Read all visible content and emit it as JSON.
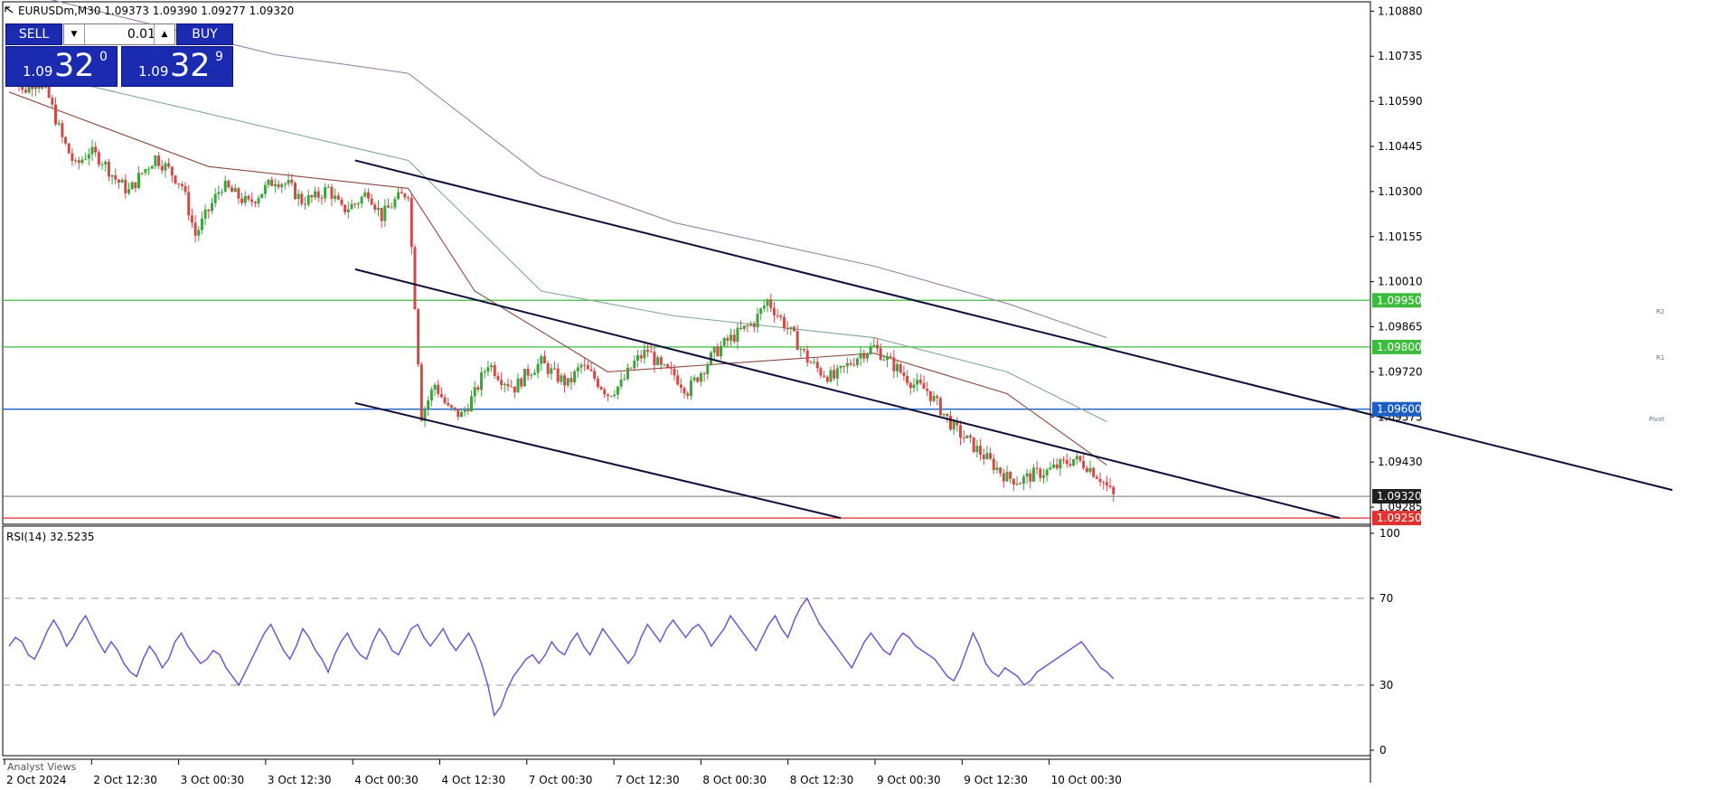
{
  "header": {
    "symbol_line": "EURUSDm,M30  1.09373 1.09390 1.09277 1.09320"
  },
  "trade_panel": {
    "sell_label": "SELL",
    "buy_label": "BUY",
    "lot": "0.01",
    "sell_price_prefix": "1.09",
    "sell_price_big": "32",
    "sell_price_sup": "0",
    "buy_price_prefix": "1.09",
    "buy_price_big": "32",
    "buy_price_sup": "9",
    "color": "#1b2bb0"
  },
  "price_axis": {
    "labels": [
      "1.10880",
      "1.10735",
      "1.10590",
      "1.10445",
      "1.10300",
      "1.10155",
      "1.10010",
      "1.09865",
      "1.09720",
      "1.09575",
      "1.09430",
      "1.09285"
    ],
    "range": [
      1.0923,
      1.1091
    ]
  },
  "price_tags": [
    {
      "label": "1.09950",
      "price": 1.0995,
      "color": "#3dbb3d"
    },
    {
      "label": "1.09800",
      "price": 1.098,
      "color": "#3dbb3d"
    },
    {
      "label": "1.09600",
      "price": 1.096,
      "color": "#1b5fc4"
    },
    {
      "label": "1.09320",
      "price": 1.0932,
      "color": "#202020"
    },
    {
      "label": "1.09250",
      "price": 1.0925,
      "color": "#e03030"
    }
  ],
  "level_labels": {
    "r2": "R2",
    "r1": "R1",
    "pivot": "Pivot"
  },
  "time_axis": [
    "2 Oct 2024",
    "2 Oct 12:30",
    "3 Oct 00:30",
    "3 Oct 12:30",
    "4 Oct 00:30",
    "4 Oct 12:30",
    "7 Oct 00:30",
    "7 Oct 12:30",
    "8 Oct 00:30",
    "8 Oct 12:30",
    "9 Oct 00:30",
    "9 Oct 12:30",
    "10 Oct 00:30"
  ],
  "rsi": {
    "title": "RSI(14) 32.5235",
    "axis_labels": [
      "100",
      "70",
      "30",
      "0"
    ],
    "levels": [
      70,
      30
    ],
    "values": [
      48,
      52,
      50,
      44,
      42,
      48,
      55,
      60,
      55,
      48,
      52,
      58,
      62,
      56,
      50,
      45,
      50,
      46,
      40,
      36,
      34,
      42,
      48,
      44,
      38,
      42,
      50,
      54,
      48,
      44,
      40,
      42,
      46,
      44,
      38,
      34,
      30,
      36,
      42,
      48,
      54,
      58,
      52,
      46,
      42,
      48,
      56,
      52,
      46,
      42,
      36,
      44,
      50,
      54,
      48,
      44,
      42,
      50,
      56,
      52,
      46,
      44,
      50,
      56,
      58,
      52,
      48,
      52,
      56,
      50,
      46,
      50,
      54,
      48,
      40,
      30,
      16,
      20,
      28,
      34,
      38,
      42,
      44,
      40,
      44,
      50,
      46,
      44,
      50,
      54,
      48,
      44,
      50,
      56,
      52,
      48,
      44,
      40,
      44,
      52,
      58,
      54,
      50,
      56,
      60,
      56,
      52,
      56,
      58,
      54,
      48,
      52,
      56,
      62,
      58,
      54,
      50,
      46,
      52,
      58,
      62,
      56,
      52,
      60,
      66,
      70,
      64,
      58,
      54,
      50,
      46,
      42,
      38,
      44,
      50,
      54,
      50,
      46,
      44,
      50,
      54,
      52,
      48,
      46,
      44,
      42,
      38,
      34,
      32,
      38,
      46,
      54,
      48,
      40,
      36,
      34,
      38,
      36,
      34,
      30,
      32,
      36,
      38,
      40,
      42,
      44,
      46,
      48,
      50,
      46,
      42,
      38,
      36,
      33
    ]
  },
  "chart_data": {
    "type": "candlestick",
    "symbol": "EURUSDm",
    "timeframe": "M30",
    "ohlc": {
      "open": 1.09373,
      "high": 1.0939,
      "low": 1.09277,
      "close": 1.0932
    },
    "current_price": 1.0932,
    "horizontal_levels": [
      {
        "name": "R2",
        "price": 1.0995
      },
      {
        "name": "R1",
        "price": 1.098
      },
      {
        "name": "Pivot",
        "price": 1.096
      },
      {
        "name": "",
        "price": 1.0925
      }
    ],
    "close_path": [
      [
        0,
        1.1072
      ],
      [
        2,
        1.1062
      ],
      [
        4,
        1.1066
      ],
      [
        6,
        1.106
      ],
      [
        8,
        1.1047
      ],
      [
        10,
        1.1038
      ],
      [
        12,
        1.1043
      ],
      [
        14,
        1.104
      ],
      [
        16,
        1.1034
      ],
      [
        18,
        1.103
      ],
      [
        20,
        1.1036
      ],
      [
        22,
        1.1041
      ],
      [
        24,
        1.1037
      ],
      [
        26,
        1.1032
      ],
      [
        28,
        1.1016
      ],
      [
        30,
        1.1024
      ],
      [
        32,
        1.1032
      ],
      [
        34,
        1.1029
      ],
      [
        36,
        1.1026
      ],
      [
        38,
        1.103
      ],
      [
        40,
        1.1034
      ],
      [
        42,
        1.1032
      ],
      [
        44,
        1.1027
      ],
      [
        46,
        1.1028
      ],
      [
        48,
        1.1031
      ],
      [
        50,
        1.1024
      ],
      [
        52,
        1.1026
      ],
      [
        54,
        1.103
      ],
      [
        56,
        1.1022
      ],
      [
        58,
        1.1027
      ],
      [
        60,
        1.103
      ],
      [
        62,
        1.0958
      ],
      [
        64,
        1.0968
      ],
      [
        66,
        1.096
      ],
      [
        68,
        1.0958
      ],
      [
        70,
        1.0965
      ],
      [
        72,
        1.0975
      ],
      [
        74,
        1.097
      ],
      [
        76,
        1.0967
      ],
      [
        78,
        1.0972
      ],
      [
        80,
        1.0975
      ],
      [
        82,
        1.0971
      ],
      [
        84,
        1.0968
      ],
      [
        86,
        1.0974
      ],
      [
        88,
        1.097
      ],
      [
        90,
        1.0965
      ],
      [
        92,
        1.0968
      ],
      [
        94,
        1.0975
      ],
      [
        96,
        1.0979
      ],
      [
        98,
        1.0973
      ],
      [
        100,
        1.0971
      ],
      [
        102,
        1.0966
      ],
      [
        104,
        1.0972
      ],
      [
        106,
        1.0978
      ],
      [
        108,
        1.0982
      ],
      [
        110,
        1.0985
      ],
      [
        112,
        1.0988
      ],
      [
        114,
        1.0995
      ],
      [
        116,
        1.0989
      ],
      [
        118,
        1.0983
      ],
      [
        120,
        1.0976
      ],
      [
        122,
        1.0972
      ],
      [
        124,
        1.097
      ],
      [
        126,
        1.0974
      ],
      [
        128,
        1.0978
      ],
      [
        130,
        1.098
      ],
      [
        132,
        1.0976
      ],
      [
        134,
        1.0972
      ],
      [
        136,
        1.0968
      ],
      [
        138,
        1.0966
      ],
      [
        140,
        1.096
      ],
      [
        142,
        1.0954
      ],
      [
        144,
        1.095
      ],
      [
        146,
        1.0946
      ],
      [
        148,
        1.0942
      ],
      [
        150,
        1.0938
      ],
      [
        152,
        1.0937
      ],
      [
        154,
        1.0939
      ],
      [
        156,
        1.094
      ],
      [
        158,
        1.0942
      ],
      [
        160,
        1.0944
      ],
      [
        162,
        1.0942
      ],
      [
        164,
        1.0938
      ],
      [
        166,
        1.0932
      ]
    ],
    "moving_averages": [
      {
        "color": "#9b7fa8",
        "points": [
          [
            0,
            1.1095
          ],
          [
            40,
            1.1074
          ],
          [
            60,
            1.1068
          ],
          [
            80,
            1.1035
          ],
          [
            100,
            1.102
          ],
          [
            130,
            1.1006
          ],
          [
            150,
            1.0994
          ],
          [
            165,
            1.0983
          ]
        ]
      },
      {
        "color": "#7fa89a",
        "points": [
          [
            0,
            1.107
          ],
          [
            40,
            1.105
          ],
          [
            60,
            1.104
          ],
          [
            80,
            1.0998
          ],
          [
            100,
            1.099
          ],
          [
            130,
            1.0983
          ],
          [
            150,
            1.0972
          ],
          [
            165,
            1.0956
          ]
        ]
      },
      {
        "color": "#8a4b3d",
        "points": [
          [
            0,
            1.1062
          ],
          [
            30,
            1.1038
          ],
          [
            60,
            1.1031
          ],
          [
            70,
            1.0998
          ],
          [
            90,
            1.0972
          ],
          [
            110,
            1.0975
          ],
          [
            130,
            1.0978
          ],
          [
            150,
            1.0965
          ],
          [
            165,
            1.0942
          ]
        ]
      }
    ],
    "channel_lines": [
      {
        "points": [
          [
            52,
            1.104
          ],
          [
            250,
            1.0934
          ]
        ]
      },
      {
        "points": [
          [
            52,
            1.1005
          ],
          [
            200,
            1.0925
          ]
        ]
      },
      {
        "points": [
          [
            52,
            1.0962
          ],
          [
            125,
            1.0925
          ]
        ]
      }
    ]
  },
  "footer": {
    "analyst_views": "Analyst Views"
  }
}
